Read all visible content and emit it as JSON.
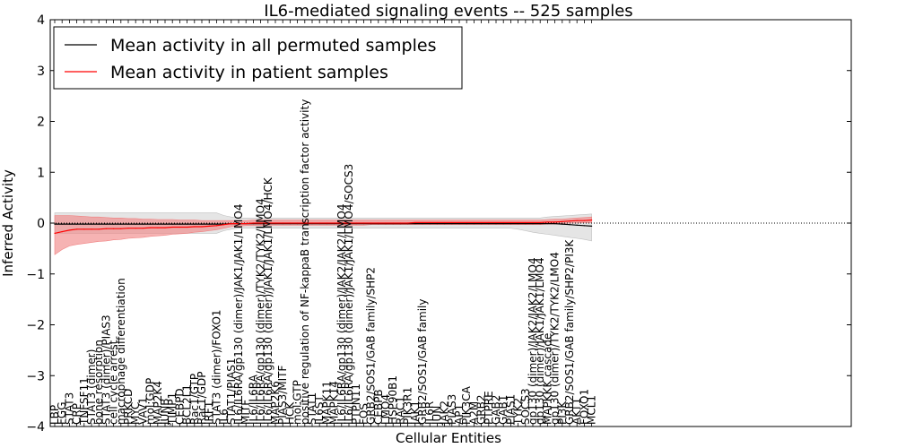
{
  "chart_data": {
    "type": "line",
    "title": "IL6-mediated signaling events -- 525 samples",
    "xlabel": "Cellular Entities",
    "ylabel": "Inferred Activity",
    "ylim": [
      -4,
      4
    ],
    "yticks": [
      -4,
      -3,
      -2,
      -1,
      0,
      1,
      2,
      3,
      4
    ],
    "legend_position": "top-left",
    "categories": [
      "LBP",
      "FGG",
      "STAT3",
      "CRP",
      "TNFSF11",
      "STAT3 (dimer)",
      "bone resorption",
      "STAT3 (dimer)/PIAS3",
      "cell cycle arrest",
      "macrophage differentiation",
      "PRKCD",
      "MYC",
      "VAV1",
      "mol:GDP",
      "MAP2K4",
      "JUNB",
      "TIMP1",
      "CEBPD",
      "BCL2L1",
      "Rac1/GTP",
      "Rac1/GDP",
      "IRF1",
      "STAT3 (dimer)/FOXO1",
      "IL6",
      "STAT1/PIAS1",
      "IL6/IL6RA/gp130 (dimer)/JAK1/JAK1/LMO4",
      "MITF",
      "IL6/IL6RA",
      "IL6/IL6RA/gp130 (dimer)/TYK2/TYK2/LMO4",
      "IL6/IL6RA/gp130 (dimer)/JAK1/JAK1/LMO4/HCK",
      "MAP2K6",
      "PIAS3/MITF",
      "HCK",
      "mol:GTP",
      "positive regulation of NF-kappaB transcription factor activity",
      "STAT1",
      "IL6ST",
      "MAPK11",
      "MAPK14",
      "IL6/IL6RA/gp130 (dimer)/JAK2/JAK2/LMO4",
      "IL6/IL6RA/gp130 (dimer)/JAK1/JAK1/LMO4/SOCS3",
      "PTPN11",
      "FOS",
      "GRB2/SOS1/GAB family/SHP2",
      "CEBPB",
      "LMO4",
      "HSP90B1",
      "RAC1",
      "PIK3R1",
      "JAK1",
      "GRB2/SOS1/GAB family",
      "IL6R",
      "JUN",
      "JAK2",
      "PIAS3",
      "AP1",
      "PIK3CA",
      "A2M",
      "GRB2",
      "PTPRE",
      "GAB2",
      "GAB1",
      "PIAS1",
      "TYK2",
      "SOCS3",
      "gp130 (dimer)/JAK2/JAK2/LMO4",
      "gp130 (dimer)/JAK1/JAK1/LMO4",
      "MAPKKK cascade",
      "gp130 (dimer)/TYK2/TYK2/LMO4",
      "PI3K",
      "GRB2/SOS1/GAB family/SHP2/PI3K",
      "AKT1",
      "FOXO1",
      "MCL1"
    ],
    "series": [
      {
        "name": "Mean activity in all permuted samples",
        "color": "#000000",
        "band_color": "#bfbfbf",
        "values": [
          -0.02,
          -0.02,
          -0.02,
          -0.02,
          -0.02,
          -0.02,
          -0.02,
          -0.02,
          -0.02,
          -0.02,
          -0.02,
          -0.02,
          -0.02,
          -0.02,
          -0.02,
          -0.02,
          -0.02,
          -0.02,
          -0.02,
          -0.02,
          -0.02,
          -0.02,
          -0.02,
          -0.02,
          -0.01,
          -0.01,
          -0.01,
          -0.01,
          -0.01,
          -0.01,
          -0.01,
          -0.01,
          -0.01,
          -0.01,
          -0.01,
          -0.01,
          -0.01,
          -0.01,
          -0.01,
          -0.01,
          -0.01,
          -0.01,
          -0.01,
          -0.01,
          -0.01,
          -0.01,
          -0.01,
          -0.01,
          -0.01,
          -0.01,
          -0.01,
          -0.01,
          -0.01,
          -0.01,
          -0.01,
          -0.01,
          -0.01,
          -0.01,
          -0.01,
          -0.01,
          -0.01,
          -0.01,
          -0.01,
          -0.01,
          -0.01,
          -0.01,
          -0.01,
          -0.01,
          -0.01,
          -0.02,
          -0.03,
          -0.04,
          -0.05,
          -0.06
        ],
        "lower": [
          -0.2,
          -0.2,
          -0.2,
          -0.2,
          -0.2,
          -0.2,
          -0.2,
          -0.2,
          -0.2,
          -0.2,
          -0.2,
          -0.2,
          -0.2,
          -0.2,
          -0.2,
          -0.2,
          -0.2,
          -0.2,
          -0.2,
          -0.2,
          -0.2,
          -0.2,
          -0.2,
          -0.15,
          -0.12,
          -0.1,
          -0.1,
          -0.1,
          -0.1,
          -0.1,
          -0.1,
          -0.1,
          -0.1,
          -0.1,
          -0.1,
          -0.1,
          -0.1,
          -0.1,
          -0.1,
          -0.1,
          -0.1,
          -0.1,
          -0.1,
          -0.1,
          -0.1,
          -0.1,
          -0.1,
          -0.1,
          -0.1,
          -0.1,
          -0.1,
          -0.1,
          -0.1,
          -0.1,
          -0.1,
          -0.1,
          -0.1,
          -0.1,
          -0.1,
          -0.1,
          -0.1,
          -0.1,
          -0.1,
          -0.12,
          -0.15,
          -0.18,
          -0.2,
          -0.22,
          -0.24,
          -0.26,
          -0.28,
          -0.3,
          -0.32,
          -0.35
        ],
        "upper": [
          0.2,
          0.2,
          0.2,
          0.2,
          0.2,
          0.2,
          0.2,
          0.2,
          0.2,
          0.2,
          0.2,
          0.2,
          0.2,
          0.2,
          0.2,
          0.2,
          0.2,
          0.2,
          0.2,
          0.2,
          0.2,
          0.2,
          0.2,
          0.15,
          0.12,
          0.1,
          0.1,
          0.1,
          0.1,
          0.1,
          0.1,
          0.1,
          0.1,
          0.1,
          0.1,
          0.1,
          0.1,
          0.1,
          0.1,
          0.1,
          0.1,
          0.1,
          0.1,
          0.1,
          0.1,
          0.1,
          0.1,
          0.1,
          0.1,
          0.1,
          0.1,
          0.1,
          0.1,
          0.1,
          0.1,
          0.1,
          0.1,
          0.1,
          0.1,
          0.1,
          0.1,
          0.1,
          0.1,
          0.1,
          0.1,
          0.1,
          0.1,
          0.12,
          0.13,
          0.14,
          0.15,
          0.16,
          0.17,
          0.18
        ]
      },
      {
        "name": "Mean activity in patient samples",
        "color": "#ff0000",
        "band_color": "#f08080",
        "values": [
          -0.2,
          -0.17,
          -0.14,
          -0.12,
          -0.12,
          -0.12,
          -0.12,
          -0.11,
          -0.11,
          -0.11,
          -0.1,
          -0.1,
          -0.1,
          -0.09,
          -0.09,
          -0.09,
          -0.08,
          -0.08,
          -0.08,
          -0.07,
          -0.07,
          -0.06,
          -0.05,
          -0.03,
          -0.01,
          -0.01,
          -0.01,
          0.0,
          0.0,
          0.0,
          0.0,
          0.0,
          0.0,
          0.0,
          0.0,
          0.0,
          0.0,
          0.0,
          0.0,
          0.0,
          0.0,
          0.0,
          0.0,
          0.0,
          0.0,
          0.0,
          0.0,
          0.0,
          0.0,
          0.01,
          0.01,
          0.01,
          0.01,
          0.01,
          0.01,
          0.01,
          0.01,
          0.01,
          0.01,
          0.01,
          0.01,
          0.01,
          0.01,
          0.01,
          0.01,
          0.01,
          0.01,
          0.02,
          0.02,
          0.03,
          0.04,
          0.05,
          0.05,
          0.06
        ],
        "lower": [
          -0.62,
          -0.52,
          -0.45,
          -0.42,
          -0.4,
          -0.38,
          -0.36,
          -0.35,
          -0.33,
          -0.32,
          -0.3,
          -0.29,
          -0.28,
          -0.26,
          -0.25,
          -0.24,
          -0.22,
          -0.21,
          -0.2,
          -0.18,
          -0.17,
          -0.15,
          -0.13,
          -0.1,
          -0.07,
          -0.06,
          -0.05,
          -0.05,
          -0.05,
          -0.04,
          -0.04,
          -0.04,
          -0.04,
          -0.04,
          -0.04,
          -0.04,
          -0.04,
          -0.04,
          -0.04,
          -0.04,
          -0.04,
          -0.04,
          -0.04,
          -0.03,
          -0.03,
          -0.03,
          -0.03,
          -0.03,
          -0.03,
          -0.03,
          -0.03,
          -0.03,
          -0.03,
          -0.03,
          -0.03,
          -0.03,
          -0.03,
          -0.03,
          -0.03,
          -0.03,
          -0.03,
          -0.03,
          -0.03,
          -0.03,
          -0.03,
          -0.03,
          -0.03,
          -0.02,
          -0.02,
          -0.01,
          0.0,
          0.0,
          0.01,
          0.01
        ],
        "upper": [
          0.15,
          0.15,
          0.15,
          0.14,
          0.13,
          0.12,
          0.12,
          0.11,
          0.1,
          0.1,
          0.09,
          0.09,
          0.08,
          0.08,
          0.07,
          0.07,
          0.07,
          0.06,
          0.06,
          0.06,
          0.05,
          0.05,
          0.05,
          0.05,
          0.05,
          0.05,
          0.05,
          0.06,
          0.06,
          0.06,
          0.06,
          0.06,
          0.06,
          0.06,
          0.06,
          0.06,
          0.06,
          0.06,
          0.06,
          0.06,
          0.06,
          0.06,
          0.06,
          0.06,
          0.06,
          0.06,
          0.06,
          0.06,
          0.06,
          0.06,
          0.06,
          0.06,
          0.06,
          0.06,
          0.06,
          0.06,
          0.06,
          0.06,
          0.06,
          0.06,
          0.06,
          0.06,
          0.06,
          0.06,
          0.06,
          0.06,
          0.06,
          0.07,
          0.08,
          0.08,
          0.09,
          0.1,
          0.11,
          0.12
        ]
      }
    ]
  }
}
